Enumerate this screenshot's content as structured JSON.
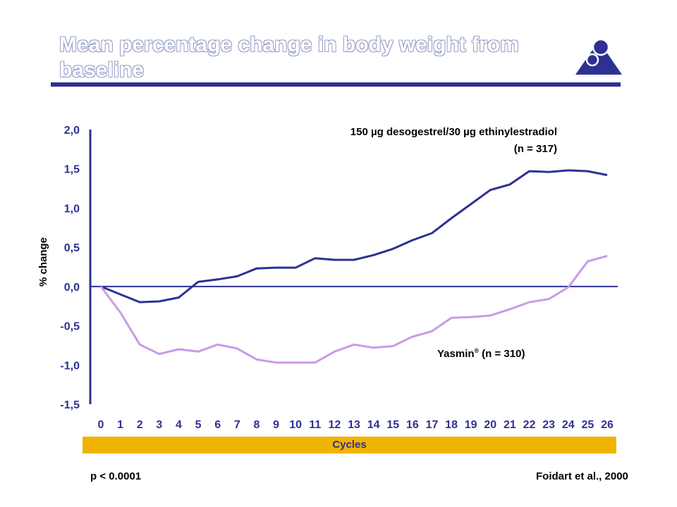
{
  "title": "Mean percentage change in body weight from baseline",
  "xlabel": "Cycles",
  "ylabel": "% change",
  "footer": {
    "pvalue": "p < 0.0001",
    "citation": "Foidart et al., 2000"
  },
  "colors": {
    "brand": "#2e3192",
    "series_dsg": "#2e3192",
    "series_yasmin": "#c89be6",
    "band": "#f0b400"
  },
  "chart_data": {
    "type": "line",
    "title": "Mean percentage change in body weight from baseline",
    "xlabel": "Cycles",
    "ylabel": "% change",
    "x": [
      0,
      1,
      2,
      3,
      4,
      5,
      6,
      7,
      8,
      9,
      10,
      11,
      12,
      13,
      14,
      15,
      16,
      17,
      18,
      19,
      20,
      21,
      22,
      23,
      24,
      25,
      26
    ],
    "ylim": [
      -1.5,
      2.0
    ],
    "y_ticks": [
      "2,0",
      "1,5",
      "1,0",
      "0,5",
      "0,0",
      "-0,5",
      "-1,0",
      "-1,5"
    ],
    "x_ticks": [
      "0",
      "1",
      "2",
      "3",
      "4",
      "5",
      "6",
      "7",
      "8",
      "9",
      "10",
      "11",
      "12",
      "13",
      "14",
      "15",
      "16",
      "17",
      "18",
      "19",
      "20",
      "21",
      "22",
      "23",
      "24",
      "25",
      "26"
    ],
    "grid": false,
    "series": [
      {
        "name": "150 µg desogestrel/30 µg ethinylestradiol",
        "n_label": "(n = 317)",
        "values": [
          0.0,
          -0.1,
          -0.2,
          -0.19,
          -0.14,
          0.06,
          0.09,
          0.13,
          0.23,
          0.24,
          0.24,
          0.36,
          0.34,
          0.34,
          0.4,
          0.48,
          0.59,
          0.68,
          0.87,
          1.05,
          1.23,
          1.3,
          1.47,
          1.46,
          1.48,
          1.47,
          1.42
        ]
      },
      {
        "name": "Yasmin",
        "superscript": "®",
        "n_label": "(n = 310)",
        "values": [
          0.0,
          -0.33,
          -0.74,
          -0.86,
          -0.8,
          -0.83,
          -0.74,
          -0.79,
          -0.93,
          -0.97,
          -0.97,
          -0.97,
          -0.83,
          -0.74,
          -0.78,
          -0.76,
          -0.64,
          -0.57,
          -0.4,
          -0.39,
          -0.37,
          -0.29,
          -0.2,
          -0.16,
          -0.01,
          0.32,
          0.39
        ]
      }
    ]
  }
}
